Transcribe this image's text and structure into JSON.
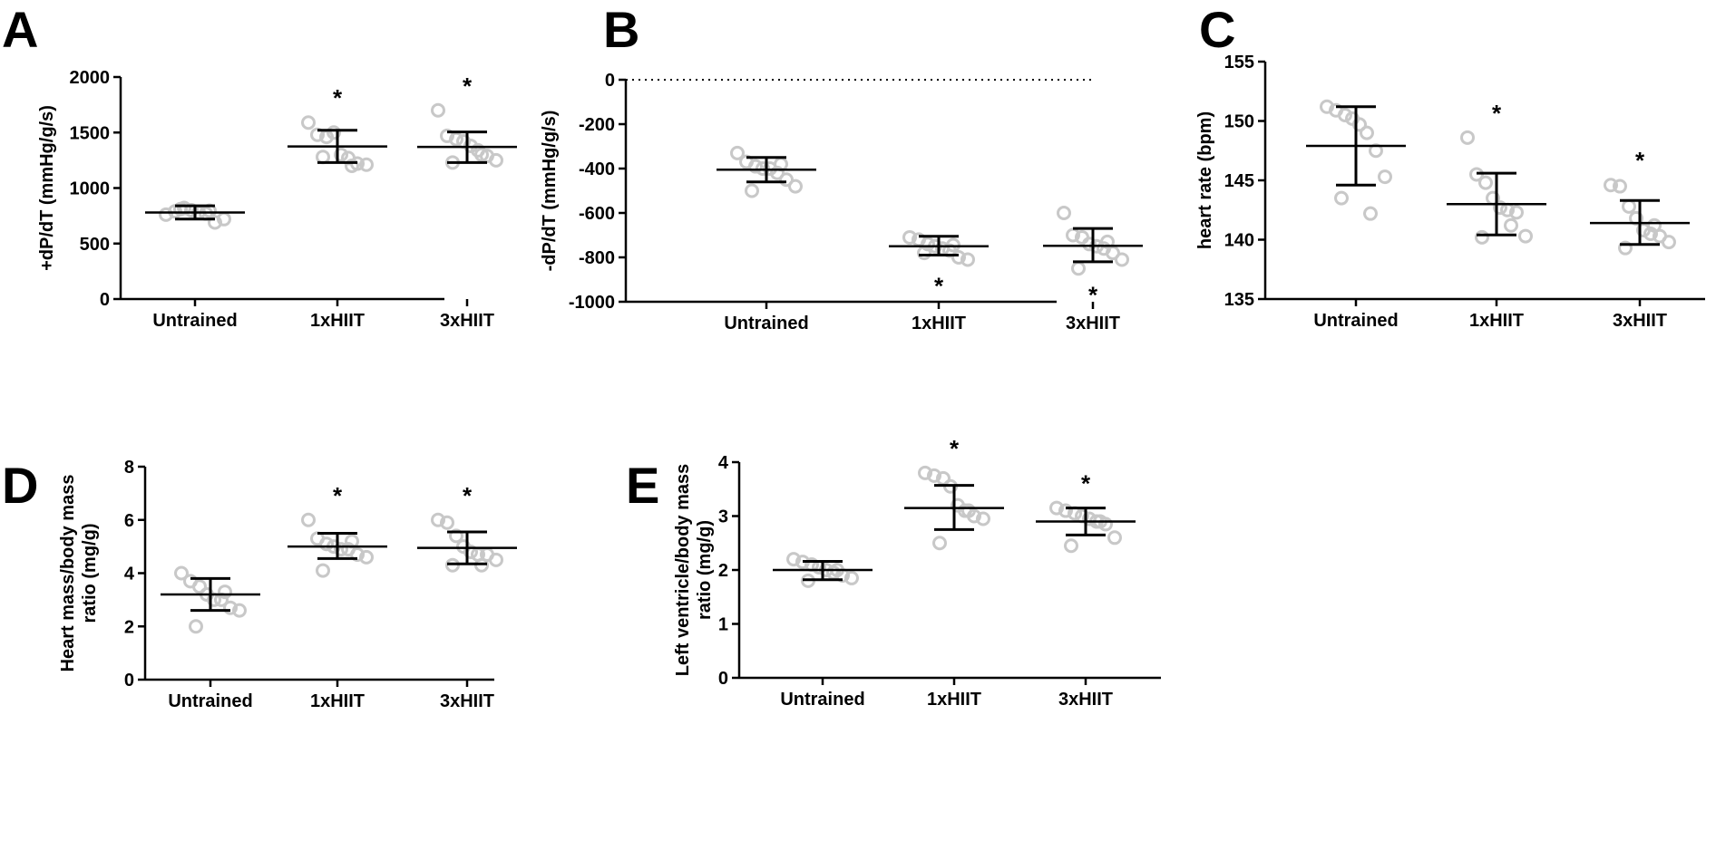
{
  "colors": {
    "point": "#c8c8c8",
    "line": "#000000",
    "background": "#ffffff"
  },
  "chart_data": [
    {
      "panel": "A",
      "type": "scatter",
      "title": "",
      "xlabel": "",
      "ylabel": "+dP/dT (mmHg/g/s)",
      "categories": [
        "Untrained",
        "1xHIIT",
        "3xHIIT"
      ],
      "ylim": [
        0,
        2000
      ],
      "yticks": [
        0,
        500,
        1000,
        1500,
        2000
      ],
      "reference_line": null,
      "groups": [
        {
          "name": "Untrained",
          "points": [
            760,
            790,
            820,
            800,
            780,
            770,
            690,
            720,
            810,
            795
          ],
          "mean": 780,
          "err_low": 720,
          "err_high": 840,
          "significance": ""
        },
        {
          "name": "1xHIIT",
          "points": [
            1590,
            1480,
            1460,
            1500,
            1300,
            1270,
            1220,
            1210,
            1280,
            1200
          ],
          "mean": 1375,
          "err_low": 1230,
          "err_high": 1520,
          "significance": "*"
        },
        {
          "name": "3xHIIT",
          "points": [
            1700,
            1470,
            1440,
            1420,
            1380,
            1340,
            1290,
            1250,
            1230,
            1300
          ],
          "mean": 1370,
          "err_low": 1230,
          "err_high": 1505,
          "significance": "*"
        }
      ]
    },
    {
      "panel": "B",
      "type": "scatter",
      "title": "",
      "xlabel": "",
      "ylabel": "-dP/dT (mmHg/g/s)",
      "categories": [
        "Untrained",
        "1xHIIT",
        "3xHIIT"
      ],
      "ylim": [
        -1000,
        0
      ],
      "yticks": [
        0,
        -200,
        -400,
        -600,
        -800,
        -1000
      ],
      "reference_line": 0,
      "groups": [
        {
          "name": "Untrained",
          "points": [
            -330,
            -370,
            -390,
            -400,
            -400,
            -420,
            -450,
            -480,
            -500,
            -380
          ],
          "mean": -405,
          "err_low": -460,
          "err_high": -350,
          "significance": ""
        },
        {
          "name": "1xHIIT",
          "points": [
            -710,
            -720,
            -740,
            -750,
            -760,
            -770,
            -800,
            -810,
            -780,
            -745
          ],
          "mean": -750,
          "err_low": -790,
          "err_high": -705,
          "significance": "*"
        },
        {
          "name": "3xHIIT",
          "points": [
            -600,
            -700,
            -710,
            -740,
            -750,
            -760,
            -780,
            -810,
            -850,
            -730
          ],
          "mean": -748,
          "err_low": -820,
          "err_high": -670,
          "significance": "*"
        }
      ]
    },
    {
      "panel": "C",
      "type": "scatter",
      "title": "",
      "xlabel": "",
      "ylabel": "heart rate (bpm)",
      "categories": [
        "Untrained",
        "1xHIIT",
        "3xHIIT"
      ],
      "ylim": [
        135,
        155
      ],
      "yticks": [
        135,
        140,
        145,
        150,
        155
      ],
      "reference_line": null,
      "groups": [
        {
          "name": "Untrained",
          "points": [
            151.2,
            150.9,
            150.5,
            150.2,
            149.7,
            149.0,
            147.5,
            145.3,
            143.5,
            142.2
          ],
          "mean": 147.9,
          "err_low": 144.6,
          "err_high": 151.2,
          "significance": ""
        },
        {
          "name": "1xHIIT",
          "points": [
            148.6,
            145.5,
            144.8,
            143.5,
            142.7,
            142.5,
            142.3,
            140.3,
            140.2,
            141.2
          ],
          "mean": 143.0,
          "err_low": 140.4,
          "err_high": 145.6,
          "significance": "*"
        },
        {
          "name": "3xHIIT",
          "points": [
            144.6,
            144.5,
            142.8,
            141.8,
            140.8,
            140.5,
            140.3,
            139.8,
            139.3,
            141.2
          ],
          "mean": 141.4,
          "err_low": 139.6,
          "err_high": 143.3,
          "significance": "*"
        }
      ]
    },
    {
      "panel": "D",
      "type": "scatter",
      "title": "",
      "xlabel": "",
      "ylabel": "Heart mass/body mass ratio (mg/g)",
      "categories": [
        "Untrained",
        "1xHIIT",
        "3xHIIT"
      ],
      "ylim": [
        0,
        8
      ],
      "yticks": [
        0,
        2,
        4,
        6,
        8
      ],
      "reference_line": null,
      "groups": [
        {
          "name": "Untrained",
          "points": [
            4.0,
            3.7,
            3.5,
            3.2,
            3.0,
            3.0,
            2.7,
            2.6,
            2.0,
            3.3
          ],
          "mean": 3.2,
          "err_low": 2.6,
          "err_high": 3.8,
          "significance": ""
        },
        {
          "name": "1xHIIT",
          "points": [
            6.0,
            5.3,
            5.1,
            5.0,
            4.9,
            4.9,
            4.7,
            4.6,
            4.1,
            5.2
          ],
          "mean": 5.0,
          "err_low": 4.55,
          "err_high": 5.5,
          "significance": "*"
        },
        {
          "name": "3xHIIT",
          "points": [
            6.0,
            5.9,
            5.4,
            5.0,
            4.8,
            4.7,
            4.7,
            4.5,
            4.3,
            4.3
          ],
          "mean": 4.95,
          "err_low": 4.35,
          "err_high": 5.55,
          "significance": "*"
        }
      ]
    },
    {
      "panel": "E",
      "type": "scatter",
      "title": "",
      "xlabel": "",
      "ylabel": "Left ventricle/body mass ratio (mg/g)",
      "categories": [
        "Untrained",
        "1xHIIT",
        "3xHIIT"
      ],
      "ylim": [
        0,
        4
      ],
      "yticks": [
        0,
        1,
        2,
        3,
        4
      ],
      "reference_line": null,
      "groups": [
        {
          "name": "Untrained",
          "points": [
            2.2,
            2.15,
            2.1,
            2.05,
            2.0,
            1.95,
            1.9,
            1.85,
            1.8,
            2.0
          ],
          "mean": 2.0,
          "err_low": 1.82,
          "err_high": 2.16,
          "significance": ""
        },
        {
          "name": "1xHIIT",
          "points": [
            3.8,
            3.75,
            3.7,
            3.55,
            3.2,
            3.1,
            3.0,
            2.95,
            2.5,
            3.1
          ],
          "mean": 3.15,
          "err_low": 2.75,
          "err_high": 3.57,
          "significance": "*"
        },
        {
          "name": "3xHIIT",
          "points": [
            3.15,
            3.1,
            3.05,
            3.0,
            2.95,
            2.9,
            2.85,
            2.6,
            2.45,
            2.9
          ],
          "mean": 2.9,
          "err_low": 2.65,
          "err_high": 3.15,
          "significance": "*"
        }
      ]
    }
  ]
}
